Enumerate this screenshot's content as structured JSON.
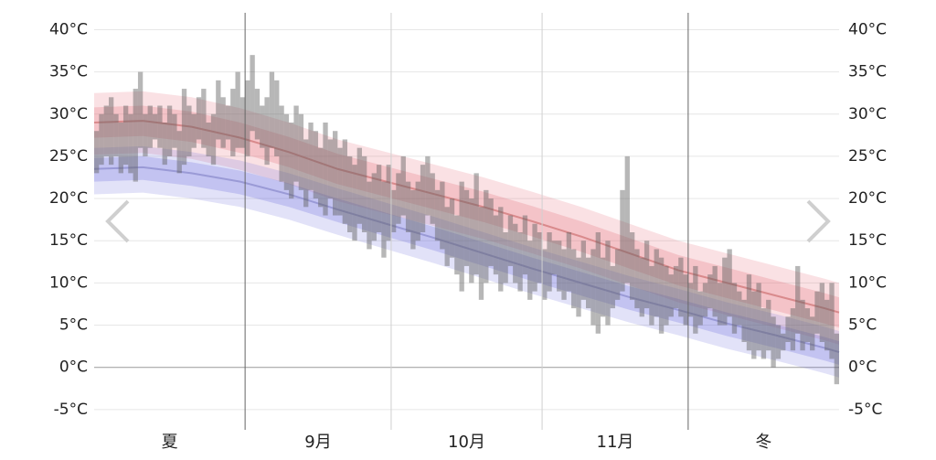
{
  "chart_data": {
    "type": "temperature-band",
    "xlim": [
      0,
      153
    ],
    "ylim": [
      -7.4,
      42
    ],
    "yticks": [
      {
        "value": -5,
        "label": "-5°C"
      },
      {
        "value": 0,
        "label": "0°C"
      },
      {
        "value": 5,
        "label": "5°C"
      },
      {
        "value": 10,
        "label": "10°C"
      },
      {
        "value": 15,
        "label": "15°C"
      },
      {
        "value": 20,
        "label": "20°C"
      },
      {
        "value": 25,
        "label": "25°C"
      },
      {
        "value": 30,
        "label": "30°C"
      },
      {
        "value": 35,
        "label": "35°C"
      },
      {
        "value": 40,
        "label": "40°C"
      }
    ],
    "grid": true,
    "xdividers": [
      {
        "value": 31,
        "style": "season"
      },
      {
        "value": 61,
        "style": "month"
      },
      {
        "value": 92,
        "style": "month"
      },
      {
        "value": 122,
        "style": "season"
      }
    ],
    "xsection_labels": [
      "夏",
      "9月",
      "10月",
      "11月",
      "冬"
    ],
    "curve_x": [
      0,
      10,
      20,
      30,
      40,
      50,
      60,
      70,
      80,
      90,
      100,
      110,
      120,
      130,
      140,
      150,
      153
    ],
    "bands": [
      {
        "color": "rgba(230,120,130,0.22)",
        "upper": [
          32.5,
          32.7,
          32,
          30.7,
          29,
          27,
          25.5,
          24,
          22.5,
          20.8,
          19,
          17,
          15,
          13.5,
          12,
          10.5,
          10
        ],
        "lower": [
          25.2,
          25.4,
          24.7,
          23.4,
          21.7,
          19.7,
          18.2,
          16.7,
          15.2,
          13.5,
          11.7,
          9.7,
          7.7,
          6.2,
          4.7,
          3.2,
          2.7
        ]
      },
      {
        "color": "rgba(230,120,130,0.28)",
        "upper": [
          30.8,
          31,
          30.3,
          29,
          27.3,
          25.3,
          23.8,
          22.3,
          20.8,
          19.1,
          17.3,
          15.3,
          13.3,
          11.8,
          10.3,
          8.8,
          8.3
        ],
        "lower": [
          27.2,
          27.4,
          26.7,
          25.4,
          23.7,
          21.7,
          20.2,
          18.7,
          17.2,
          15.5,
          13.7,
          11.7,
          9.7,
          8.2,
          6.7,
          5.2,
          4.7
        ]
      },
      {
        "color": "rgba(110,110,220,0.2)",
        "upper": [
          26,
          26.2,
          25.5,
          24.5,
          23,
          21.2,
          19.5,
          17.8,
          16,
          14.2,
          12.5,
          10.8,
          9.3,
          7.7,
          6.3,
          4.8,
          4.3
        ],
        "lower": [
          20.5,
          20.7,
          20,
          19,
          17.5,
          15.7,
          14,
          12.3,
          10.5,
          8.7,
          7,
          5.3,
          3.8,
          2.2,
          0.8,
          -0.7,
          -1.2
        ]
      },
      {
        "color": "rgba(110,110,220,0.26)",
        "upper": [
          24.8,
          25,
          24.3,
          23.3,
          21.8,
          20,
          18.3,
          16.6,
          14.8,
          13,
          11.3,
          9.6,
          8.1,
          6.5,
          5.1,
          3.6,
          3.1
        ],
        "lower": [
          22,
          22.2,
          21.5,
          20.5,
          19,
          17.2,
          15.5,
          13.8,
          12,
          10.2,
          8.5,
          6.8,
          5.3,
          3.7,
          2.3,
          0.8,
          0.3
        ]
      }
    ],
    "lines": [
      {
        "color": "#d98a8c",
        "values": [
          29,
          29.2,
          28.5,
          27.2,
          25.5,
          23.5,
          22,
          20.5,
          19,
          17.3,
          15.5,
          13.5,
          11.5,
          10,
          8.5,
          7,
          6.5
        ]
      },
      {
        "color": "#9a9ad6",
        "values": [
          23.5,
          23.7,
          23,
          22,
          20.5,
          18.7,
          17,
          15.3,
          13.5,
          11.7,
          10,
          8.3,
          6.8,
          5.2,
          3.8,
          2.3,
          1.8
        ]
      }
    ],
    "daily": {
      "color": "rgba(95,95,95,0.45)",
      "x": [
        0,
        1,
        2,
        3,
        4,
        5,
        6,
        7,
        8,
        9,
        10,
        11,
        12,
        13,
        14,
        15,
        16,
        17,
        18,
        19,
        20,
        21,
        22,
        23,
        24,
        25,
        26,
        27,
        28,
        29,
        30,
        31,
        32,
        33,
        34,
        35,
        36,
        37,
        38,
        39,
        40,
        41,
        42,
        43,
        44,
        45,
        46,
        47,
        48,
        49,
        50,
        51,
        52,
        53,
        54,
        55,
        56,
        57,
        58,
        59,
        60,
        61,
        62,
        63,
        64,
        65,
        66,
        67,
        68,
        69,
        70,
        71,
        72,
        73,
        74,
        75,
        76,
        77,
        78,
        79,
        80,
        81,
        82,
        83,
        84,
        85,
        86,
        87,
        88,
        89,
        90,
        91,
        92,
        93,
        94,
        95,
        96,
        97,
        98,
        99,
        100,
        101,
        102,
        103,
        104,
        105,
        106,
        107,
        108,
        109,
        110,
        111,
        112,
        113,
        114,
        115,
        116,
        117,
        118,
        119,
        120,
        121,
        122,
        123,
        124,
        125,
        126,
        127,
        128,
        129,
        130,
        131,
        132,
        133,
        134,
        135,
        136,
        137,
        138,
        139,
        140,
        141,
        142,
        143,
        144,
        145,
        146,
        147,
        148,
        149,
        150,
        151,
        152
      ],
      "high": [
        28,
        30,
        31,
        32,
        30,
        29,
        31,
        30,
        33,
        35,
        30,
        31,
        30,
        31,
        29,
        31,
        30,
        28,
        33,
        31,
        30,
        32,
        33,
        29,
        30,
        34,
        32,
        31,
        33,
        35,
        32,
        34,
        37,
        33,
        31,
        32,
        35,
        34,
        31,
        30,
        29,
        31,
        30,
        27,
        29,
        28,
        26,
        29,
        27,
        28,
        26,
        27,
        25,
        24,
        26,
        25,
        22,
        23,
        24,
        22,
        24,
        21,
        23,
        25,
        22,
        21,
        22,
        24,
        25,
        23,
        21,
        22,
        19,
        20,
        18,
        22,
        21,
        20,
        23,
        19,
        21,
        20,
        18,
        19,
        16,
        18,
        17,
        16,
        18,
        15,
        17,
        16,
        14,
        16,
        15,
        15,
        14,
        16,
        14,
        13,
        15,
        13,
        14,
        16,
        13,
        15,
        12,
        14,
        21,
        25,
        16,
        14,
        13,
        15,
        12,
        14,
        13,
        12,
        11,
        12,
        13,
        11,
        10,
        12,
        9,
        10,
        11,
        12,
        10,
        13,
        14,
        10,
        9,
        8,
        11,
        9,
        10,
        7,
        8,
        6,
        5,
        4,
        6,
        7,
        12,
        8,
        7,
        6,
        9,
        10,
        8,
        10,
        4
      ],
      "low": [
        23,
        24,
        25,
        24,
        25,
        23,
        24,
        23,
        22,
        26,
        25,
        26,
        27,
        26,
        24,
        25,
        26,
        23,
        24,
        25,
        26,
        27,
        26,
        25,
        24,
        27,
        26,
        27,
        25,
        26,
        26,
        25,
        28,
        27,
        26,
        24,
        26,
        25,
        22,
        21,
        20,
        22,
        21,
        19,
        21,
        20,
        19,
        18,
        20,
        18,
        18,
        17,
        16,
        15,
        17,
        16,
        14,
        15,
        16,
        13,
        15,
        16,
        17,
        18,
        16,
        14,
        15,
        16,
        18,
        17,
        15,
        14,
        12,
        13,
        11,
        9,
        12,
        10,
        11,
        8,
        10,
        12,
        11,
        9,
        10,
        12,
        10,
        9,
        11,
        8,
        9,
        10,
        8,
        9,
        11,
        9,
        8,
        9,
        7,
        6,
        8,
        7,
        5,
        4,
        6,
        5,
        7,
        8,
        9,
        10,
        8,
        7,
        6,
        7,
        5,
        6,
        4,
        5,
        6,
        7,
        6,
        5,
        6,
        4,
        5,
        6,
        7,
        6,
        5,
        5,
        6,
        4,
        5,
        3,
        2,
        1,
        2,
        1,
        2,
        0,
        1,
        2,
        3,
        2,
        4,
        2,
        3,
        2,
        4,
        3,
        2,
        1,
        -2
      ]
    }
  }
}
